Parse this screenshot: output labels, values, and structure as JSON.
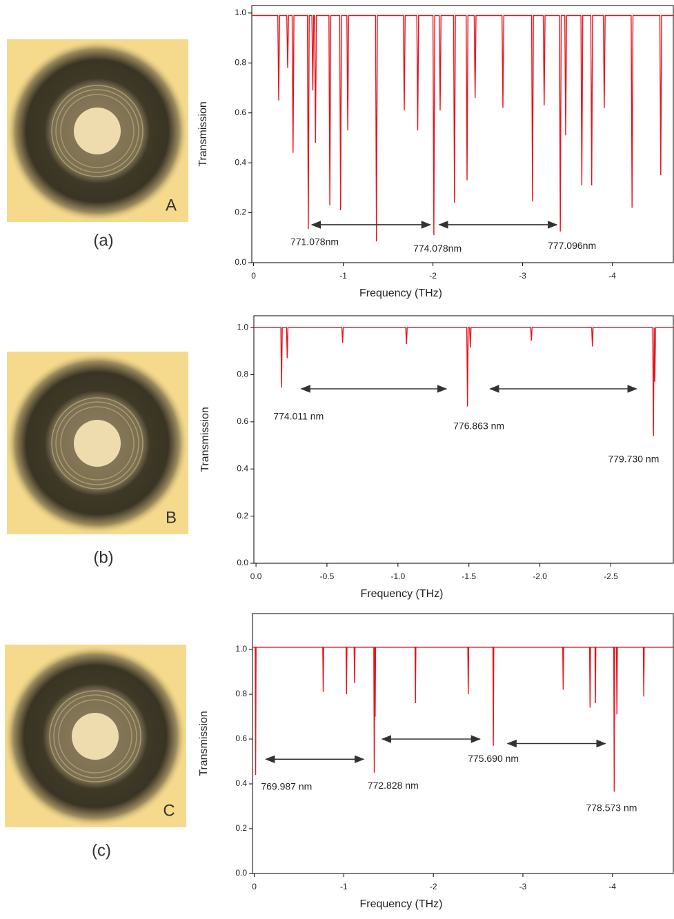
{
  "chart_data": [
    {
      "type": "line",
      "panel_label": "(a)",
      "image_label": "A",
      "x_label": "Frequency (THz)",
      "y_label": "Transmission",
      "color": "#e8141c",
      "xlim": [
        0.02,
        -4.68
      ],
      "ylim": [
        0,
        1.03
      ],
      "xticks": [
        0,
        -1,
        -2,
        -3,
        -4
      ],
      "yticks": [
        {
          "value": 0,
          "label": "0.0"
        },
        0.2,
        0.4,
        0.6,
        0.8,
        {
          "value": 1,
          "label": "1.0"
        }
      ],
      "x": [
        0.02,
        -0.27,
        -0.28,
        -0.29,
        -0.37,
        -0.38,
        -0.39,
        -0.43,
        -0.44,
        -0.45,
        -0.6,
        -0.61,
        -0.62,
        -0.65,
        -0.66,
        -0.67,
        -0.68,
        -0.69,
        -0.7,
        -0.84,
        -0.85,
        -0.86,
        -0.96,
        -0.97,
        -0.98,
        -1.04,
        -1.05,
        -1.06,
        -1.36,
        -1.37,
        -1.38,
        -1.67,
        -1.68,
        -1.69,
        -1.82,
        -1.83,
        -1.84,
        -2.0,
        -2.01,
        -2.02,
        -2.07,
        -2.08,
        -2.09,
        -2.23,
        -2.24,
        -2.25,
        -2.37,
        -2.38,
        -2.39,
        -2.46,
        -2.47,
        -2.48,
        -2.77,
        -2.78,
        -2.79,
        -3.1,
        -3.11,
        -3.12,
        -3.23,
        -3.24,
        -3.25,
        -3.41,
        -3.42,
        -3.43,
        -3.47,
        -3.48,
        -3.49,
        -3.65,
        -3.66,
        -3.67,
        -3.76,
        -3.77,
        -3.78,
        -3.9,
        -3.91,
        -3.92,
        -4.21,
        -4.22,
        -4.23,
        -4.53,
        -4.54,
        -4.55,
        -4.68
      ],
      "values": [
        0.99,
        0.99,
        0.65,
        0.99,
        0.99,
        0.78,
        0.99,
        0.99,
        0.44,
        0.99,
        0.99,
        0.135,
        0.99,
        0.99,
        0.69,
        0.99,
        0.99,
        0.48,
        0.99,
        0.99,
        0.23,
        0.99,
        0.99,
        0.21,
        0.99,
        0.99,
        0.53,
        0.99,
        0.99,
        0.085,
        0.99,
        0.99,
        0.61,
        0.99,
        0.99,
        0.53,
        0.99,
        0.99,
        0.11,
        0.99,
        0.99,
        0.61,
        0.99,
        0.99,
        0.24,
        0.99,
        0.99,
        0.33,
        0.99,
        0.99,
        0.66,
        0.99,
        0.99,
        0.62,
        0.99,
        0.99,
        0.245,
        0.99,
        0.99,
        0.63,
        0.99,
        0.99,
        0.125,
        0.99,
        0.99,
        0.51,
        0.99,
        0.99,
        0.31,
        0.99,
        0.99,
        0.31,
        0.99,
        0.99,
        0.62,
        0.99,
        0.99,
        0.22,
        0.99,
        0.99,
        0.35,
        0.99,
        0.99
      ],
      "annotations": [
        {
          "text": "771.078nm",
          "x": -0.68,
          "y": 0.08
        },
        {
          "text": "774.078nm",
          "x": -2.05,
          "y": 0.055
        },
        {
          "text": "777.096nm",
          "x": -3.55,
          "y": 0.066
        }
      ],
      "arrows": [
        {
          "x1": -0.65,
          "x2": -1.97,
          "y": 0.152
        },
        {
          "x1": -2.07,
          "x2": -3.38,
          "y": 0.152
        }
      ]
    },
    {
      "type": "line",
      "panel_label": "(b)",
      "image_label": "B",
      "x_label": "Frequency (THz)",
      "y_label": "Transmission",
      "color": "#e8141c",
      "xlim": [
        0.015,
        -2.94
      ],
      "ylim": [
        0,
        1.05
      ],
      "xticks": [
        {
          "value": 0,
          "label": "0.0"
        },
        -0.5,
        {
          "value": -1,
          "label": "-1.0"
        },
        -1.5,
        {
          "value": -2,
          "label": "-2.0"
        },
        -2.5
      ],
      "yticks": [
        {
          "value": 0,
          "label": "0.0"
        },
        0.2,
        0.4,
        0.6,
        0.8,
        {
          "value": 1,
          "label": "1.0"
        }
      ],
      "x": [
        0.015,
        -0.175,
        -0.18,
        -0.185,
        -0.215,
        -0.22,
        -0.225,
        -0.605,
        -0.61,
        -0.615,
        -1.055,
        -1.06,
        -1.065,
        -1.485,
        -1.49,
        -1.495,
        -1.505,
        -1.51,
        -1.515,
        -1.935,
        -1.94,
        -1.945,
        -2.365,
        -2.37,
        -2.375,
        -2.795,
        -2.8,
        -2.805,
        -2.81,
        -2.815,
        -2.94
      ],
      "values": [
        1.0,
        1.0,
        0.745,
        1.0,
        1.0,
        0.87,
        1.0,
        1.0,
        0.935,
        1.0,
        1.0,
        0.93,
        1.0,
        1.0,
        0.665,
        1.0,
        1.0,
        0.915,
        1.0,
        1.0,
        0.945,
        1.0,
        1.0,
        0.92,
        1.0,
        1.0,
        0.54,
        1.0,
        0.77,
        1.0,
        1.0
      ],
      "annotations": [
        {
          "text": "774.011 nm",
          "x": -0.3,
          "y": 0.62
        },
        {
          "text": "776.863 nm",
          "x": -1.57,
          "y": 0.58
        },
        {
          "text": "779.730 nm",
          "x": -2.66,
          "y": 0.44
        }
      ],
      "arrows": [
        {
          "x1": -0.32,
          "x2": -1.34,
          "y": 0.74
        },
        {
          "x1": -1.65,
          "x2": -2.68,
          "y": 0.74
        }
      ]
    },
    {
      "type": "line",
      "panel_label": "(c)",
      "image_label": "C",
      "x_label": "Frequency (THz)",
      "y_label": "Transmission",
      "color": "#e8141c",
      "xlim": [
        0.02,
        -4.68
      ],
      "ylim": [
        0,
        1.16
      ],
      "xticks": [
        0,
        -1,
        -2,
        -3,
        -4
      ],
      "yticks": [
        {
          "value": 0,
          "label": "0.0"
        },
        0.2,
        0.4,
        0.6,
        0.8,
        {
          "value": 1,
          "label": "1.0"
        }
      ],
      "x": [
        0.02,
        -0.01,
        -0.015,
        -0.02,
        -0.765,
        -0.77,
        -0.775,
        -1.025,
        -1.03,
        -1.035,
        -1.115,
        -1.12,
        -1.125,
        -1.335,
        -1.34,
        -1.345,
        -1.35,
        -1.355,
        -1.795,
        -1.8,
        -1.805,
        -2.385,
        -2.39,
        -2.395,
        -2.665,
        -2.67,
        -2.675,
        -3.445,
        -3.45,
        -3.455,
        -3.745,
        -3.75,
        -3.755,
        -3.805,
        -3.81,
        -3.815,
        -4.015,
        -4.02,
        -4.025,
        -4.045,
        -4.05,
        -4.055,
        -4.345,
        -4.35,
        -4.355,
        -4.68
      ],
      "values": [
        1.01,
        1.01,
        0.44,
        1.01,
        1.01,
        0.81,
        1.01,
        1.01,
        0.8,
        1.01,
        1.01,
        0.85,
        1.01,
        1.01,
        0.45,
        1.01,
        0.7,
        1.01,
        1.01,
        0.76,
        1.01,
        1.01,
        0.8,
        1.01,
        1.01,
        0.57,
        1.01,
        1.01,
        0.82,
        1.01,
        1.01,
        0.74,
        1.01,
        1.01,
        0.76,
        1.01,
        1.01,
        0.365,
        1.01,
        1.01,
        0.71,
        1.01,
        1.01,
        0.79,
        1.01,
        1.01
      ],
      "annotations": [
        {
          "text": "769.987 nm",
          "x": -0.36,
          "y": 0.385
        },
        {
          "text": "772.828 nm",
          "x": -1.55,
          "y": 0.39
        },
        {
          "text": "775.690 nm",
          "x": -2.67,
          "y": 0.51
        },
        {
          "text": "778.573 nm",
          "x": -3.99,
          "y": 0.29
        }
      ],
      "arrows": [
        {
          "x1": -0.13,
          "x2": -1.22,
          "y": 0.51
        },
        {
          "x1": -1.43,
          "x2": -2.52,
          "y": 0.6
        },
        {
          "x1": -2.83,
          "x2": -3.92,
          "y": 0.58
        }
      ]
    }
  ]
}
